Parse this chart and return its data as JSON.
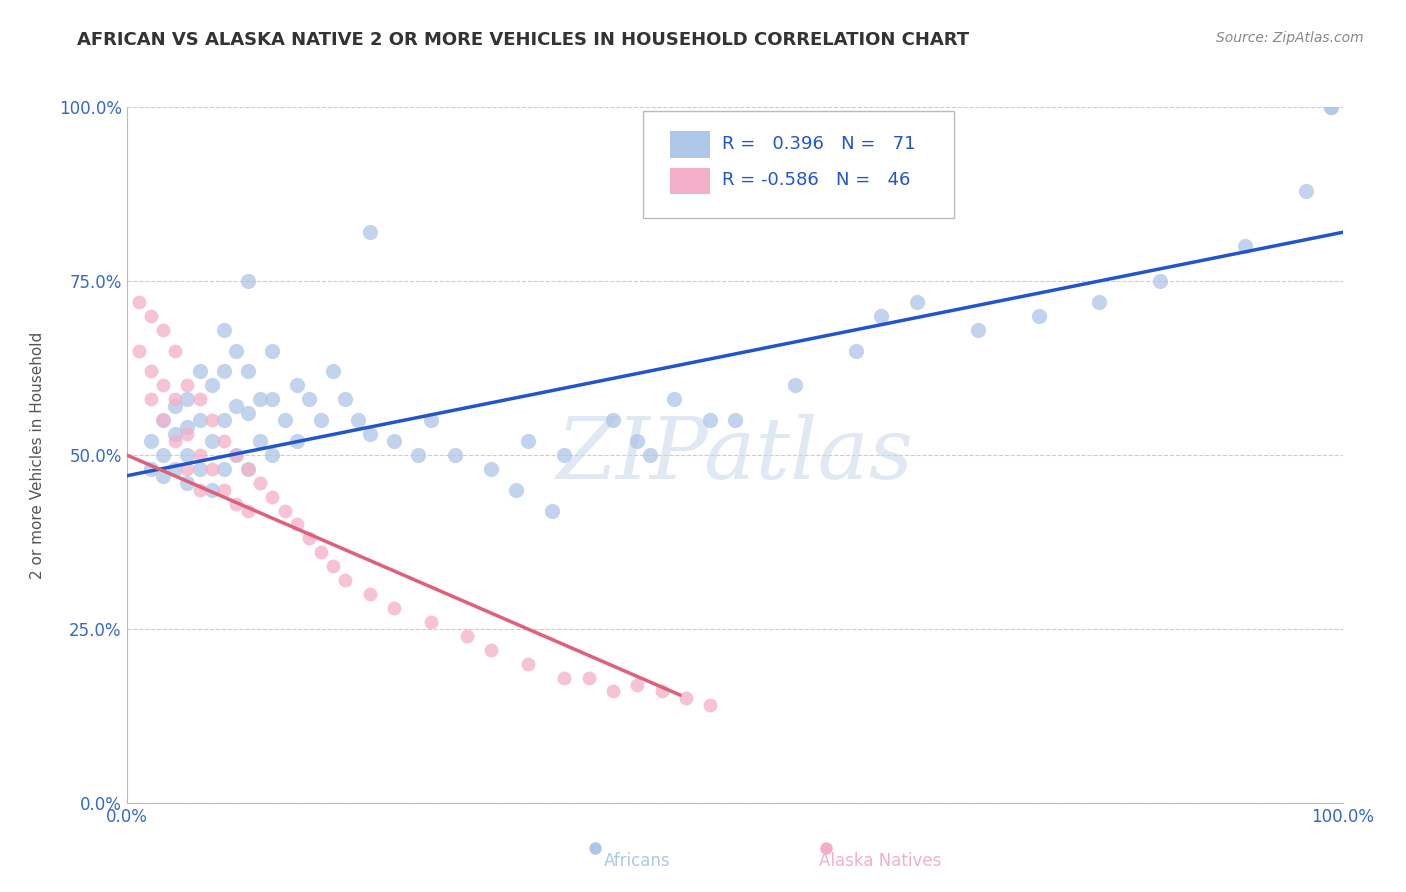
{
  "title": "AFRICAN VS ALASKA NATIVE 2 OR MORE VEHICLES IN HOUSEHOLD CORRELATION CHART",
  "source": "Source: ZipAtlas.com",
  "ylabel": "2 or more Vehicles in Household",
  "xlim": [
    0.0,
    1.0
  ],
  "ylim": [
    0.0,
    1.0
  ],
  "ytick_positions": [
    0.0,
    0.25,
    0.5,
    0.75,
    1.0
  ],
  "blue_R": 0.396,
  "blue_N": 71,
  "pink_R": -0.586,
  "pink_N": 46,
  "blue_color": "#aec6e8",
  "pink_color": "#f4afc8",
  "blue_line_color": "#2255cc",
  "pink_line_color": "#e0607a",
  "legend_text_color": "#2255cc",
  "watermark": "ZIPatlas",
  "background_color": "#ffffff",
  "grid_color": "#cccccc",
  "title_fontsize": 13,
  "blue_line_x0": 0.0,
  "blue_line_y0": 0.47,
  "blue_line_x1": 1.0,
  "blue_line_y1": 0.82,
  "pink_line_x0": 0.0,
  "pink_line_y0": 0.5,
  "pink_line_x1": 0.455,
  "pink_line_y1": 0.155,
  "blue_scatter_x": [
    0.02,
    0.02,
    0.03,
    0.03,
    0.03,
    0.04,
    0.04,
    0.04,
    0.05,
    0.05,
    0.05,
    0.05,
    0.06,
    0.06,
    0.06,
    0.07,
    0.07,
    0.07,
    0.08,
    0.08,
    0.08,
    0.08,
    0.09,
    0.09,
    0.09,
    0.1,
    0.1,
    0.1,
    0.11,
    0.11,
    0.12,
    0.12,
    0.12,
    0.13,
    0.14,
    0.14,
    0.15,
    0.16,
    0.17,
    0.18,
    0.19,
    0.2,
    0.22,
    0.24,
    0.25,
    0.27,
    0.3,
    0.33,
    0.36,
    0.4,
    0.42,
    0.45,
    0.32,
    0.35,
    0.43,
    0.48,
    0.5,
    0.55,
    0.6,
    0.62,
    0.65,
    0.7,
    0.75,
    0.8,
    0.85,
    0.92,
    0.97,
    0.99,
    0.99,
    0.1,
    0.2
  ],
  "blue_scatter_y": [
    0.48,
    0.52,
    0.5,
    0.55,
    0.47,
    0.53,
    0.48,
    0.57,
    0.46,
    0.54,
    0.5,
    0.58,
    0.48,
    0.55,
    0.62,
    0.45,
    0.52,
    0.6,
    0.48,
    0.55,
    0.62,
    0.68,
    0.5,
    0.57,
    0.65,
    0.48,
    0.56,
    0.62,
    0.52,
    0.58,
    0.5,
    0.58,
    0.65,
    0.55,
    0.52,
    0.6,
    0.58,
    0.55,
    0.62,
    0.58,
    0.55,
    0.53,
    0.52,
    0.5,
    0.55,
    0.5,
    0.48,
    0.52,
    0.5,
    0.55,
    0.52,
    0.58,
    0.45,
    0.42,
    0.5,
    0.55,
    0.55,
    0.6,
    0.65,
    0.7,
    0.72,
    0.68,
    0.7,
    0.72,
    0.75,
    0.8,
    0.88,
    1.0,
    1.0,
    0.75,
    0.82
  ],
  "pink_scatter_x": [
    0.01,
    0.01,
    0.02,
    0.02,
    0.02,
    0.03,
    0.03,
    0.03,
    0.04,
    0.04,
    0.04,
    0.05,
    0.05,
    0.05,
    0.06,
    0.06,
    0.06,
    0.07,
    0.07,
    0.08,
    0.08,
    0.09,
    0.09,
    0.1,
    0.1,
    0.11,
    0.12,
    0.13,
    0.14,
    0.15,
    0.16,
    0.17,
    0.18,
    0.2,
    0.22,
    0.25,
    0.28,
    0.3,
    0.33,
    0.36,
    0.38,
    0.4,
    0.42,
    0.44,
    0.46,
    0.48
  ],
  "pink_scatter_y": [
    0.72,
    0.65,
    0.7,
    0.62,
    0.58,
    0.68,
    0.6,
    0.55,
    0.65,
    0.58,
    0.52,
    0.6,
    0.53,
    0.48,
    0.58,
    0.5,
    0.45,
    0.55,
    0.48,
    0.52,
    0.45,
    0.5,
    0.43,
    0.48,
    0.42,
    0.46,
    0.44,
    0.42,
    0.4,
    0.38,
    0.36,
    0.34,
    0.32,
    0.3,
    0.28,
    0.26,
    0.24,
    0.22,
    0.2,
    0.18,
    0.18,
    0.16,
    0.17,
    0.16,
    0.15,
    0.14
  ]
}
